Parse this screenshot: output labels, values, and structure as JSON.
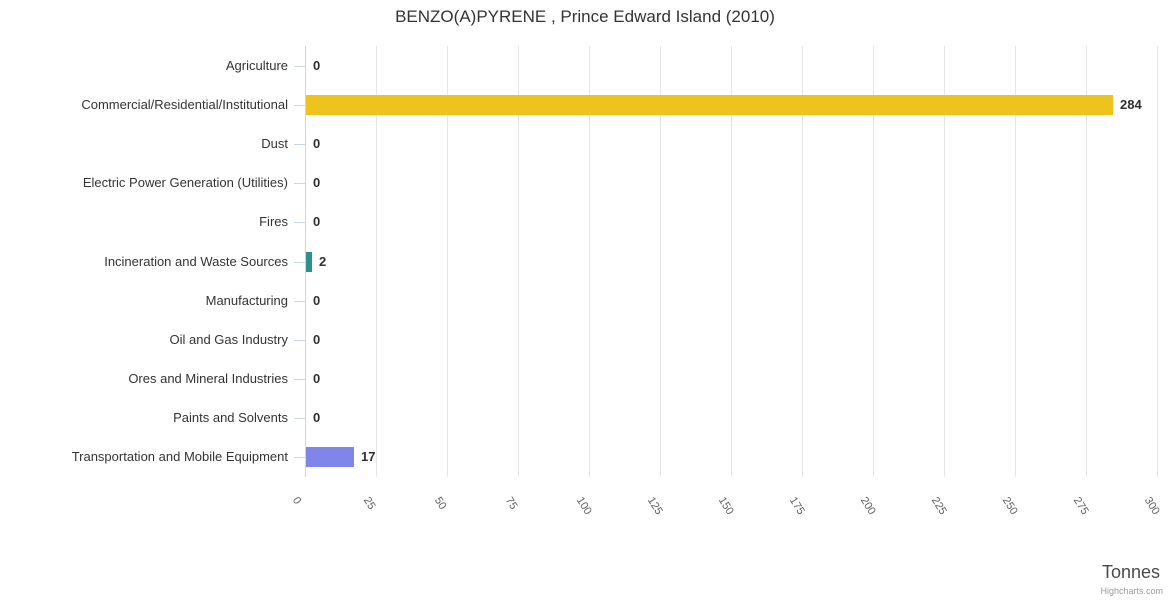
{
  "title": "BENZO(A)PYRENE , Prince Edward Island (2010)",
  "x_axis": {
    "title": "Tonnes"
  },
  "credits": {
    "label": "Highcharts.com"
  },
  "chart_data": {
    "type": "bar",
    "title": "BENZO(A)PYRENE , Prince Edward Island (2010)",
    "categories": [
      "Agriculture",
      "Commercial/Residential/Institutional",
      "Dust",
      "Electric Power Generation (Utilities)",
      "Fires",
      "Incineration and Waste Sources",
      "Manufacturing",
      "Oil and Gas Industry",
      "Ores and Mineral Industries",
      "Paints and Solvents",
      "Transportation and Mobile Equipment"
    ],
    "values": [
      0,
      284,
      0,
      0,
      0,
      2,
      0,
      0,
      0,
      0,
      17
    ],
    "colors": [
      null,
      "#EEC31E",
      null,
      null,
      null,
      "#2B908F",
      null,
      null,
      null,
      null,
      "#8085E9"
    ],
    "xlabel": "Tonnes",
    "ylabel": "",
    "xlim": [
      0,
      300
    ],
    "x_ticks": [
      0,
      25,
      50,
      75,
      100,
      125,
      150,
      175,
      200,
      225,
      250,
      275,
      300
    ],
    "grid": true,
    "legend": false,
    "grid_color": "#e6e6e6",
    "axis_color": "#ccd6eb"
  }
}
